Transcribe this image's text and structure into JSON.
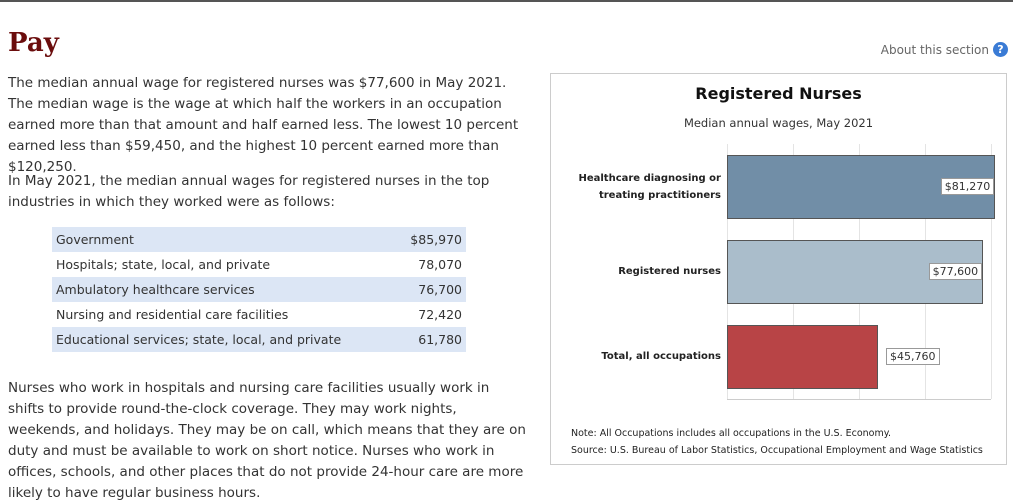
{
  "header": {
    "title": "Pay",
    "about": "About this section",
    "help_icon": "?"
  },
  "paragraphs": [
    "The median annual wage for registered nurses was $77,600 in May 2021. The median wage is the wage at which half the workers in an occupation earned more than that amount and half earned less. The lowest 10 percent earned less than $59,450, and the highest 10 percent earned more than $120,250.",
    "In May 2021, the median annual wages for registered nurses in the top industries in which they worked were as follows:",
    "Nurses who work in hospitals and nursing care facilities usually work in shifts to provide round-the-clock coverage. They may work nights, weekends, and holidays. They may be on call, which means that they are on duty and must be available to work on short notice. Nurses who work in offices, schools, and other places that do not provide 24-hour care are more likely to have regular business hours."
  ],
  "table": {
    "rows": [
      [
        "Government",
        "$85,970"
      ],
      [
        "Hospitals; state, local, and private",
        "78,070"
      ],
      [
        "Ambulatory healthcare services",
        "76,700"
      ],
      [
        "Nursing and residential care facilities",
        "72,420"
      ],
      [
        "Educational services; state, local, and private",
        "61,780"
      ]
    ]
  },
  "chart_data": {
    "type": "hbar",
    "title": "Registered Nurses",
    "subtitle": "Median annual wages, May 2021",
    "categories": [
      "Healthcare diagnosing or treating practitioners",
      "Registered nurses",
      "Total, all occupations"
    ],
    "values": [
      81270,
      77600,
      45760
    ],
    "value_labels": [
      "$81,270",
      "$77,600",
      "$45,760"
    ],
    "colors": [
      "#718ea7",
      "#aabdcb",
      "#b84446"
    ],
    "xlim": [
      0,
      80000
    ],
    "xticks": [
      0,
      20000,
      40000,
      60000,
      80000
    ],
    "grid": true,
    "notes": [
      "Note: All Occupations includes all occupations in the U.S. Economy.",
      "Source: U.S. Bureau of Labor Statistics, Occupational Employment and Wage Statistics"
    ]
  }
}
